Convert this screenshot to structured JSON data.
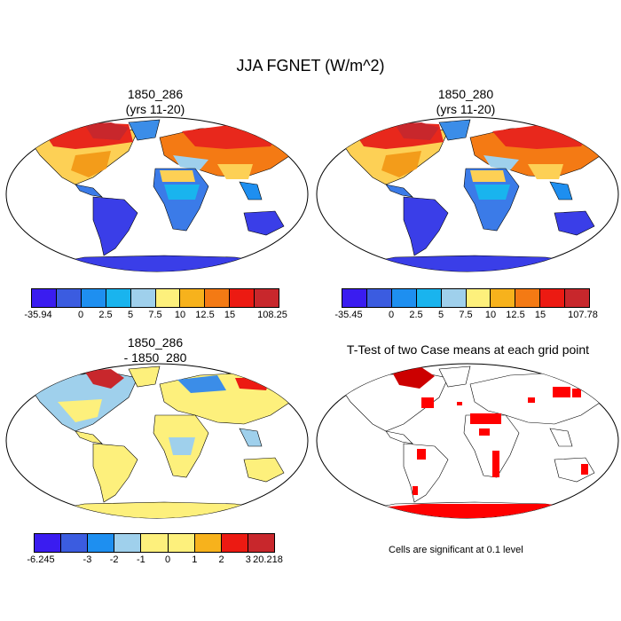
{
  "title": "JJA FGNET (W/m^2)",
  "panels": [
    {
      "title1": "1850_286",
      "title2": "(yrs 11-20)"
    },
    {
      "title1": "1850_280",
      "title2": "(yrs 11-20)"
    },
    {
      "title1": "1850_286",
      "title2": "- 1850_280"
    },
    {
      "title1": "T-Test of two Case means at each grid point",
      "title2": ""
    }
  ],
  "colorbars": [
    {
      "colors": [
        "#3a1cf0",
        "#3b5ce0",
        "#1e8ff0",
        "#19b4ee",
        "#9fd0ec",
        "#fdf07c",
        "#f7b21c",
        "#f47a14",
        "#ec1a12",
        "#c8272c"
      ],
      "labels": [
        "-35.94",
        "0",
        "2.5",
        "5",
        "7.5",
        "10",
        "12.5",
        "15",
        "108.25"
      ]
    },
    {
      "colors": [
        "#3a1cf0",
        "#3b5ce0",
        "#1e8ff0",
        "#19b4ee",
        "#9fd0ec",
        "#fdf07c",
        "#f7b21c",
        "#f47a14",
        "#ec1a12",
        "#c8272c"
      ],
      "labels": [
        "-35.45",
        "0",
        "2.5",
        "5",
        "7.5",
        "10",
        "12.5",
        "15",
        "107.78"
      ]
    },
    {
      "colors": [
        "#3a1cf0",
        "#3b5ce0",
        "#1e8ff0",
        "#9fd0ec",
        "#fdf07c",
        "#fdf07c",
        "#f7b21c",
        "#ec1a12",
        "#c8272c"
      ],
      "labels": [
        "-6.245",
        "-3",
        "-2",
        "-1",
        "0",
        "1",
        "2",
        "3",
        "20.218"
      ]
    }
  ],
  "note": "Cells are significant at 0.1 level",
  "colors": {
    "ocean": "#ffffff",
    "significant": "#ff0000",
    "coast": "#000000"
  }
}
